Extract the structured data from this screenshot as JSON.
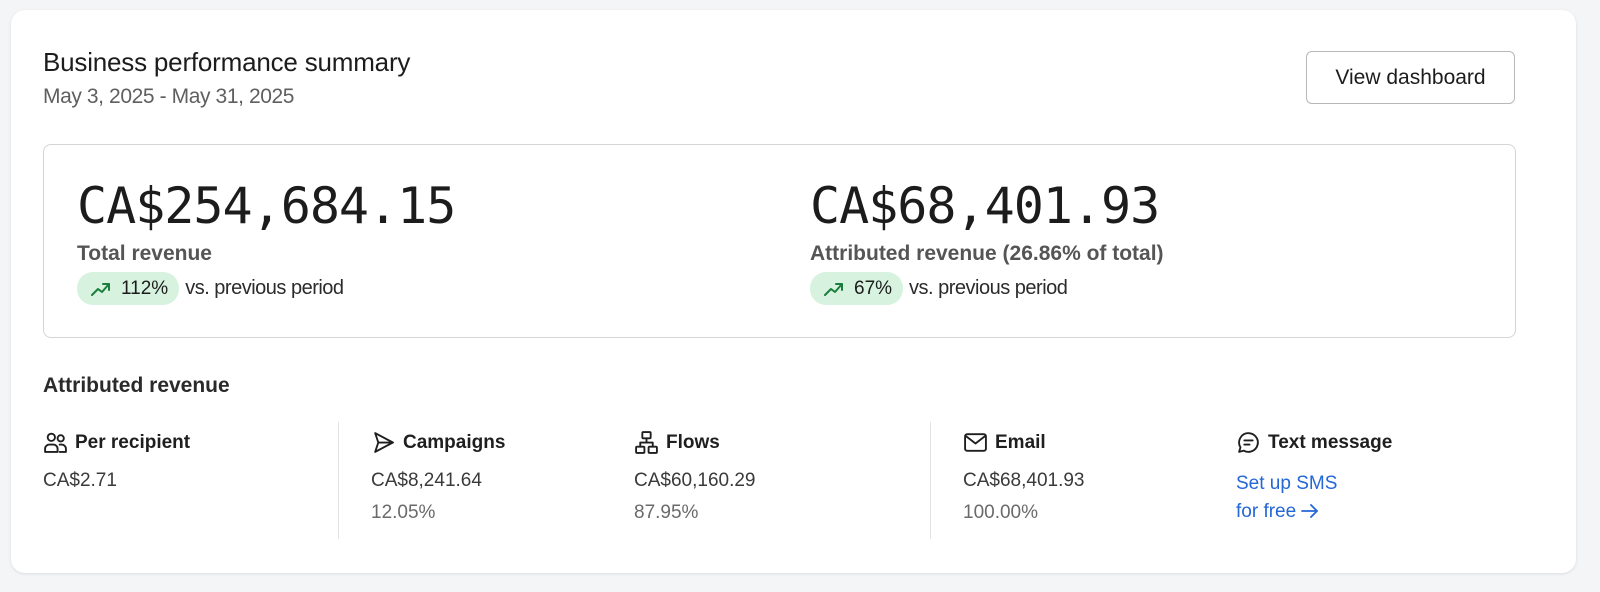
{
  "header": {
    "title": "Business performance summary",
    "date_range": "May 3, 2025 - May 31, 2025",
    "view_button_label": "View dashboard"
  },
  "summary": {
    "total": {
      "value": "CA$254,684.15",
      "label": "Total revenue",
      "change": "112%",
      "change_text": "vs. previous period",
      "trend_icon": "trending-up-icon"
    },
    "attributed": {
      "value": "CA$68,401.93",
      "label": "Attributed revenue (26.86% of total)",
      "change": "67%",
      "change_text": "vs. previous period",
      "trend_icon": "trending-up-icon"
    }
  },
  "attributed_section": {
    "title": "Attributed revenue",
    "per_recipient": {
      "label": "Per recipient",
      "value": "CA$2.71",
      "icon": "users-icon"
    },
    "campaigns": {
      "label": "Campaigns",
      "value": "CA$8,241.64",
      "percent": "12.05%",
      "icon": "send-icon"
    },
    "flows": {
      "label": "Flows",
      "value": "CA$60,160.29",
      "percent": "87.95%",
      "icon": "flows-icon"
    },
    "email": {
      "label": "Email",
      "value": "CA$68,401.93",
      "percent": "100.00%",
      "icon": "mail-icon"
    },
    "text_message": {
      "label": "Text message",
      "link_line1": "Set up SMS",
      "link_line2": "for free",
      "icon": "message-icon",
      "arrow_icon": "arrow-right-icon"
    }
  },
  "colors": {
    "positive_badge_bg": "#d7f3df",
    "positive_icon": "#1a7f3c",
    "link": "#2467d6"
  }
}
